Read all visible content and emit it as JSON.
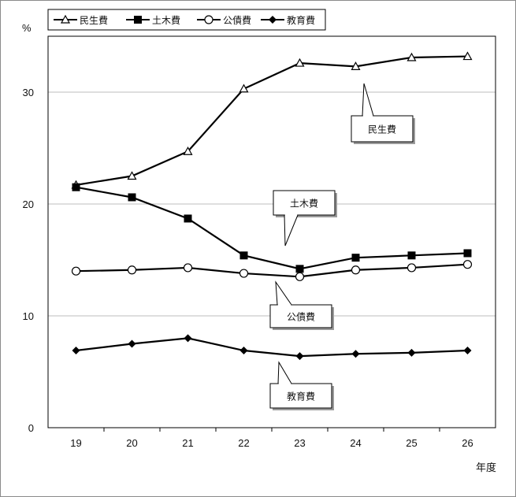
{
  "chart_data": {
    "type": "line",
    "title": "",
    "ylabel": "%",
    "xlabel": "年度",
    "categories": [
      "19",
      "20",
      "21",
      "22",
      "23",
      "24",
      "25",
      "26"
    ],
    "ylim": [
      0,
      35
    ],
    "yticks": [
      "0",
      "10",
      "20",
      "30"
    ],
    "grid": true,
    "legend_position": "top-left",
    "series": [
      {
        "name": "民生費",
        "marker": "triangle-open",
        "values": [
          21.7,
          22.5,
          24.7,
          30.3,
          32.6,
          32.3,
          33.1,
          33.2
        ]
      },
      {
        "name": "土木費",
        "marker": "square-filled",
        "values": [
          21.5,
          20.6,
          18.7,
          15.4,
          14.2,
          15.2,
          15.4,
          15.6
        ]
      },
      {
        "name": "公債費",
        "marker": "circle-open",
        "values": [
          14.0,
          14.1,
          14.3,
          13.8,
          13.5,
          14.1,
          14.3,
          14.6
        ]
      },
      {
        "name": "教育費",
        "marker": "diamond-filled",
        "values": [
          6.9,
          7.5,
          8.0,
          6.9,
          6.4,
          6.6,
          6.7,
          6.9
        ]
      }
    ],
    "annotations": [
      "民生費",
      "土木費",
      "公債費",
      "教育費"
    ]
  }
}
